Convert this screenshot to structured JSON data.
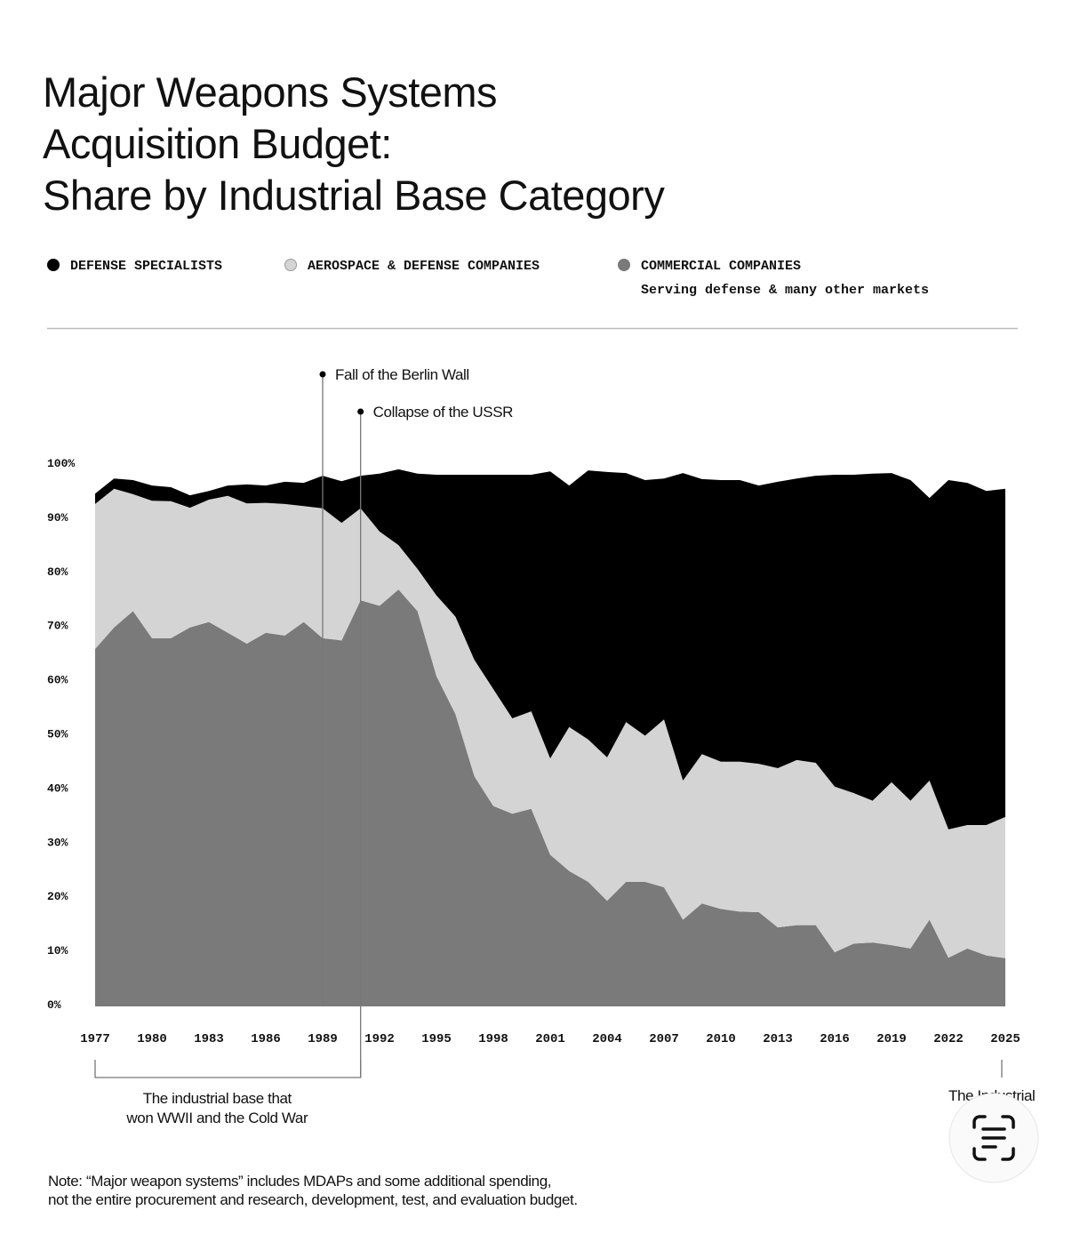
{
  "chart_data": {
    "type": "stacked_area",
    "title": [
      "Major Weapons Systems",
      "Acquisition Budget:",
      "Share by Industrial Base Category"
    ],
    "x": [
      1977,
      1978,
      1979,
      1980,
      1981,
      1982,
      1983,
      1984,
      1985,
      1986,
      1987,
      1988,
      1989,
      1990,
      1991,
      1992,
      1993,
      1994,
      1995,
      1996,
      1997,
      1998,
      1999,
      2000,
      2001,
      2002,
      2003,
      2004,
      2005,
      2006,
      2007,
      2008,
      2009,
      2010,
      2011,
      2012,
      2013,
      2014,
      2015,
      2016,
      2017,
      2018,
      2019,
      2020,
      2021,
      2022,
      2023,
      2024,
      2025
    ],
    "series": [
      {
        "name": "DEFENSE SPECIALISTS",
        "color": "#000000",
        "values": [
          1.9,
          1.9,
          2.6,
          2.8,
          2.6,
          2.3,
          1.6,
          1.9,
          3.5,
          3.2,
          4.1,
          4.3,
          6,
          7.7,
          6,
          10.7,
          14,
          17.6,
          22.3,
          26.2,
          34.2,
          39.6,
          45,
          43.7,
          53,
          44.6,
          49.7,
          52.7,
          46,
          47.2,
          44.5,
          56.8,
          50.8,
          52,
          52,
          51.4,
          52.9,
          52,
          53,
          57.6,
          58.8,
          60.4,
          57.1,
          59.2,
          52.2,
          64.5,
          63.2,
          61.7,
          60.6
        ]
      },
      {
        "name": "AEROSPACE & DEFENSE COMPANIES",
        "color": "#d4d4d4",
        "values": [
          26.8,
          25.6,
          21.6,
          25.4,
          25.3,
          22.1,
          22.6,
          25.3,
          25.9,
          24,
          24.3,
          21.4,
          24,
          21.7,
          17,
          13.7,
          8.2,
          7.8,
          14.9,
          18,
          21.5,
          21.6,
          17.6,
          18,
          17.8,
          26.6,
          26.3,
          26.5,
          29.5,
          27,
          31,
          25.7,
          27.6,
          27.2,
          27.7,
          27.4,
          29.4,
          30.5,
          30,
          30.6,
          27.8,
          26.2,
          30.1,
          27.3,
          25.7,
          23.7,
          22.8,
          24.1,
          26.1
        ]
      },
      {
        "name": "COMMERCIAL COMPANIES",
        "description": "Serving defense & many other markets",
        "color": "#7a7a7a",
        "values": [
          66,
          70,
          73,
          68,
          68,
          70,
          71,
          69,
          67,
          69,
          68.5,
          71,
          68,
          67.6,
          75,
          74,
          77,
          73,
          61,
          54,
          42.5,
          37,
          35.6,
          36.5,
          28,
          25,
          23,
          19.5,
          23,
          23,
          22,
          16,
          19,
          18,
          17.5,
          17.4,
          14.6,
          15,
          15,
          10,
          11.6,
          11.8,
          11.3,
          10.7,
          16,
          9,
          10.7,
          9.4,
          8.9
        ]
      }
    ],
    "xlim": [
      1977,
      2025
    ],
    "xticks": [
      1977,
      1980,
      1983,
      1986,
      1989,
      1992,
      1995,
      1998,
      2001,
      2004,
      2007,
      2010,
      2013,
      2016,
      2019,
      2022,
      2025
    ],
    "ylim": [
      0,
      100
    ],
    "yticks": [
      {
        "value": 0,
        "label": "0%"
      },
      {
        "value": 10,
        "label": "10%"
      },
      {
        "value": 20,
        "label": "20%"
      },
      {
        "value": 30,
        "label": "30%"
      },
      {
        "value": 40,
        "label": "40%"
      },
      {
        "value": 50,
        "label": "50%"
      },
      {
        "value": 60,
        "label": "60%"
      },
      {
        "value": 70,
        "label": "70%"
      },
      {
        "value": 80,
        "label": "80%"
      },
      {
        "value": 90,
        "label": "90%"
      },
      {
        "value": 100,
        "label": "100%"
      }
    ],
    "grid": false,
    "annotations": [
      {
        "text": "Fall of the Berlin Wall",
        "x": 1989
      },
      {
        "text": "Collapse of the USSR",
        "x": 1991
      }
    ],
    "bracket": {
      "lines": [
        "The industrial base that",
        "won WWII and the Cold War"
      ],
      "from": 1977,
      "to": 1991
    },
    "end_note": {
      "text": "The Industrial",
      "x": 2025
    },
    "note": [
      "Note: “Major weapon systems” includes MDAPs and some additional spending,",
      "not the entire procurement and research, development, test, and evaluation budget."
    ]
  }
}
